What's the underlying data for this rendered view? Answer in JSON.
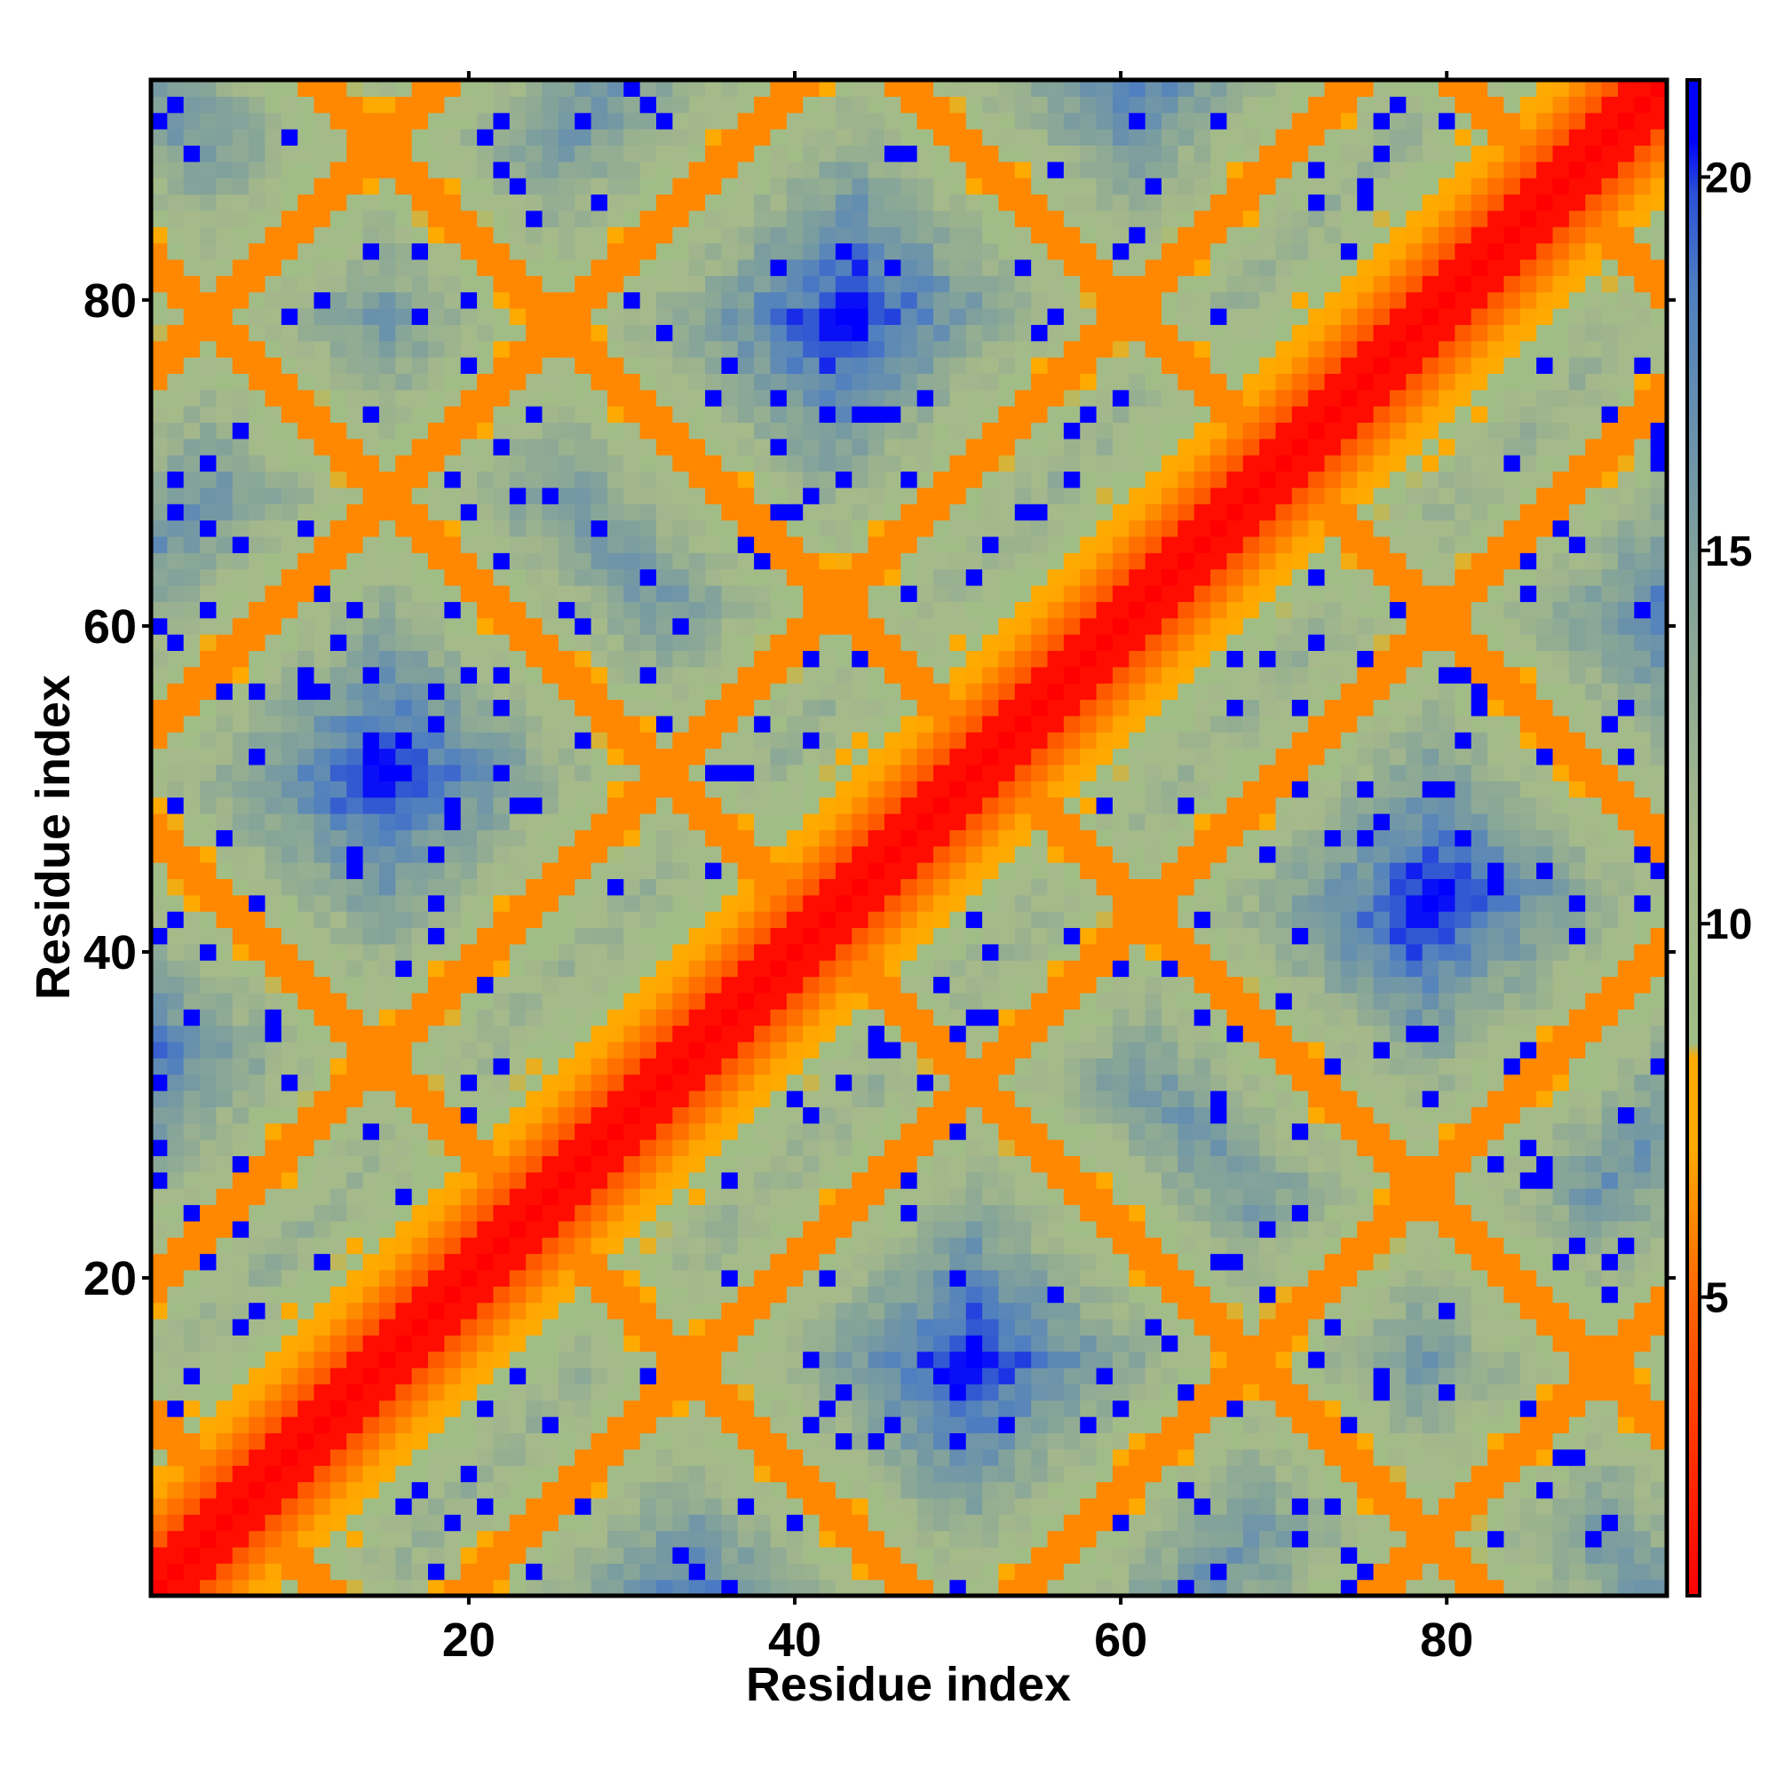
{
  "chart_data": {
    "type": "heatmap",
    "title": "",
    "xlabel": "Residue index",
    "ylabel": "Residue index",
    "n_residues": 93,
    "xlim": [
      1,
      93
    ],
    "ylim": [
      1,
      93
    ],
    "x_ticks": [
      20,
      40,
      60,
      80
    ],
    "y_ticks": [
      20,
      40,
      60,
      80
    ],
    "x_tick_labels": [
      "20",
      "40",
      "60",
      "80"
    ],
    "y_tick_labels": [
      "20",
      "40",
      "60",
      "80"
    ],
    "grid": false,
    "legend": "right colorbar",
    "colorbar": {
      "range": [
        1,
        21.3
      ],
      "ticks": [
        5,
        10,
        15,
        20
      ],
      "tick_labels": [
        "5",
        "10",
        "15",
        "20"
      ],
      "stops": [
        {
          "value": 1,
          "color": "#ff0000"
        },
        {
          "value": 5,
          "color": "#ff6600"
        },
        {
          "value": 7,
          "color": "#ffaa00"
        },
        {
          "value": 8.2,
          "color": "#ffaa00"
        },
        {
          "value": 8.4,
          "color": "#9fbe86"
        },
        {
          "value": 11,
          "color": "#a6b98a"
        },
        {
          "value": 15,
          "color": "#7fa09c"
        },
        {
          "value": 18.5,
          "color": "#4f7fc0"
        },
        {
          "value": 19.8,
          "color": "#2b4fd6"
        },
        {
          "value": 20.5,
          "color": "#0000ff"
        },
        {
          "value": 21.3,
          "color": "#0000ff"
        }
      ]
    },
    "value_description": "Pairwise residue distance map; red diagonal, orange diagonal and anti-diagonal contact bands, blue = far",
    "contact_bands": [
      {
        "direction": "diagonal",
        "offset": 0,
        "value": 1
      },
      {
        "direction": "anti",
        "sum": 12,
        "value": 6
      },
      {
        "direction": "anti",
        "sum": 48,
        "value": 6
      },
      {
        "direction": "anti",
        "sum": 83,
        "value": 6
      },
      {
        "direction": "anti",
        "sum": 104,
        "value": 6
      },
      {
        "direction": "anti",
        "sum": 140,
        "value": 6
      },
      {
        "direction": "anti",
        "sum": 174,
        "value": 6
      },
      {
        "direction": "diagonal",
        "offset": -19,
        "value": 6
      },
      {
        "direction": "diagonal",
        "offset": 19,
        "value": 6
      },
      {
        "direction": "diagonal",
        "offset": -53,
        "value": 6
      },
      {
        "direction": "diagonal",
        "offset": 53,
        "value": 6
      },
      {
        "direction": "diagonal",
        "offset": -75,
        "value": 6
      },
      {
        "direction": "diagonal",
        "offset": 75,
        "value": 6
      }
    ]
  }
}
